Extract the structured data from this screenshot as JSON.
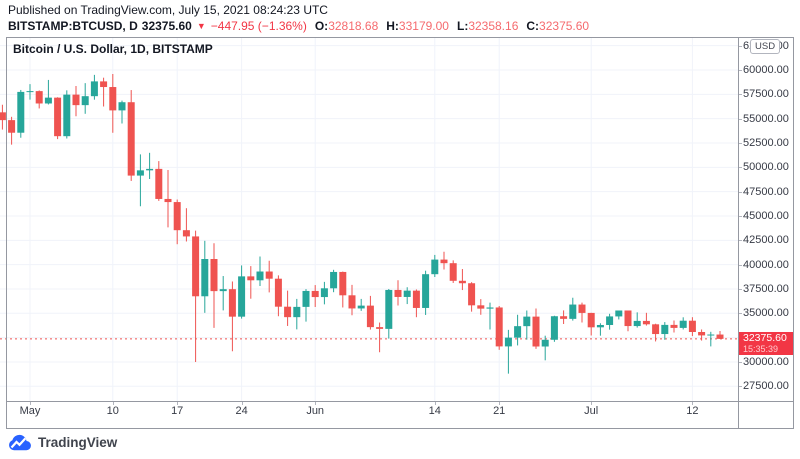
{
  "header": {
    "published_line": "Published on TradingView.com, July 15, 2021 08:24:23 UTC",
    "symbol": "BITSTAMP:BTCUSD, D",
    "price": "32375.60",
    "change_icon": "▼",
    "change": "−447.95 (−1.36%)",
    "ohlc": [
      {
        "label": "O:",
        "value": "32818.68"
      },
      {
        "label": "H:",
        "value": "33179.00"
      },
      {
        "label": "L:",
        "value": "32358.16"
      },
      {
        "label": "C:",
        "value": "32375.60"
      }
    ]
  },
  "chart": {
    "watermark_title": "Bitcoin / U.S. Dollar, 1D, BITSTAMP",
    "currency_badge": "USD",
    "price_label": {
      "price": "32375.60",
      "countdown": "15:35:39"
    }
  },
  "footer": {
    "logo_text": "TradingView"
  },
  "colors": {
    "up": "#26a69a",
    "down": "#ef5350",
    "accent_red": "#f23645",
    "grid": "#f0f3fa",
    "frame": "#9598a1",
    "axis_text": "#363a45"
  },
  "chart_data": {
    "type": "candlestick",
    "title": "Bitcoin / U.S. Dollar, 1D, BITSTAMP",
    "symbol": "BITSTAMP:BTCUSD",
    "interval": "1D",
    "current_price": 32375.6,
    "countdown": "15:35:39",
    "ylim": [
      26000,
      63400
    ],
    "grid": true,
    "y_ticks": [
      {
        "v": 62500,
        "label": "62500.00"
      },
      {
        "v": 60000,
        "label": "60000.00"
      },
      {
        "v": 57500,
        "label": "57500.00"
      },
      {
        "v": 55000,
        "label": "55000.00"
      },
      {
        "v": 52500,
        "label": "52500.00"
      },
      {
        "v": 50000,
        "label": "50000.00"
      },
      {
        "v": 47500,
        "label": "47500.00"
      },
      {
        "v": 45000,
        "label": "45000.00"
      },
      {
        "v": 42500,
        "label": "42500.00"
      },
      {
        "v": 40000,
        "label": "40000.00"
      },
      {
        "v": 37500,
        "label": "37500.00"
      },
      {
        "v": 35000,
        "label": "35000.00"
      },
      {
        "v": 32500,
        "label": ""
      },
      {
        "v": 30000,
        "label": "30000.00"
      },
      {
        "v": 27500,
        "label": "27500.00"
      }
    ],
    "x_ticks": [
      {
        "label": "May",
        "day": 0
      },
      {
        "label": "10",
        "day": 9
      },
      {
        "label": "17",
        "day": 16
      },
      {
        "label": "24",
        "day": 23
      },
      {
        "label": "Jun",
        "day": 31
      },
      {
        "label": "14",
        "day": 44
      },
      {
        "label": "21",
        "day": 51
      },
      {
        "label": "Jul",
        "day": 61
      },
      {
        "label": "12",
        "day": 72
      }
    ],
    "candle_fields": [
      "date",
      "open",
      "high",
      "low",
      "close"
    ],
    "candles": [
      [
        "Apr 28",
        55650,
        56430,
        53880,
        54850
      ],
      [
        "Apr 29",
        54850,
        55190,
        52330,
        53555
      ],
      [
        "Apr 30",
        53555,
        57950,
        53040,
        57750
      ],
      [
        "May 1",
        57750,
        58550,
        56950,
        57830
      ],
      [
        "May 2",
        57830,
        57900,
        56050,
        56560
      ],
      [
        "May 3",
        56560,
        58980,
        56460,
        57160
      ],
      [
        "May 4",
        57160,
        57200,
        52900,
        53200
      ],
      [
        "May 5",
        53200,
        57910,
        52960,
        57470
      ],
      [
        "May 6",
        57470,
        58350,
        55250,
        56390
      ],
      [
        "May 7",
        56390,
        58650,
        55500,
        57310
      ],
      [
        "May 8",
        57310,
        59500,
        56950,
        58830
      ],
      [
        "May 9",
        58830,
        59210,
        56250,
        58250
      ],
      [
        "May 10",
        58250,
        59590,
        53550,
        55850
      ],
      [
        "May 11",
        55850,
        56850,
        54500,
        56690
      ],
      [
        "May 12",
        56690,
        57940,
        48600,
        49150
      ],
      [
        "May 13",
        49150,
        51330,
        46000,
        49690
      ],
      [
        "May 14",
        49690,
        51490,
        48800,
        49840
      ],
      [
        "May 15",
        49840,
        50640,
        46550,
        46750
      ],
      [
        "May 16",
        46750,
        49720,
        43825,
        46430
      ],
      [
        "May 17",
        46430,
        46690,
        42100,
        43540
      ],
      [
        "May 18",
        43540,
        45800,
        42380,
        42900
      ],
      [
        "May 19",
        42900,
        43500,
        30000,
        36750
      ],
      [
        "May 20",
        36750,
        42450,
        35050,
        40580
      ],
      [
        "May 21",
        40580,
        42200,
        33500,
        37280
      ],
      [
        "May 22",
        37280,
        38830,
        35300,
        37480
      ],
      [
        "May 23",
        37480,
        38270,
        31100,
        34655
      ],
      [
        "May 24",
        34655,
        39920,
        34455,
        38796
      ],
      [
        "May 25",
        38796,
        39850,
        36500,
        38392
      ],
      [
        "May 26",
        38392,
        40840,
        37810,
        39294
      ],
      [
        "May 27",
        39294,
        40400,
        37150,
        38556
      ],
      [
        "May 28",
        38556,
        38900,
        34700,
        35680
      ],
      [
        "May 29",
        35680,
        37330,
        33700,
        34605
      ],
      [
        "May 30",
        34605,
        36480,
        33350,
        35660
      ],
      [
        "May 31",
        35660,
        37490,
        34150,
        37298
      ],
      [
        "Jun 1",
        37298,
        37900,
        35650,
        36670
      ],
      [
        "Jun 2",
        36670,
        38230,
        35920,
        37570
      ],
      [
        "Jun 3",
        37570,
        39470,
        37170,
        39250
      ],
      [
        "Jun 4",
        39250,
        39290,
        35600,
        36850
      ],
      [
        "Jun 5",
        36850,
        37920,
        34800,
        35500
      ],
      [
        "Jun 6",
        35500,
        36480,
        35250,
        35790
      ],
      [
        "Jun 7",
        35790,
        36790,
        33330,
        33580
      ],
      [
        "Jun 8",
        33580,
        34050,
        31000,
        33400
      ],
      [
        "Jun 9",
        33400,
        37500,
        32400,
        37400
      ],
      [
        "Jun 10",
        37400,
        38400,
        35800,
        36680
      ],
      [
        "Jun 11",
        36680,
        37680,
        35950,
        37330
      ],
      [
        "Jun 12",
        37330,
        37450,
        34600,
        35550
      ],
      [
        "Jun 13",
        35550,
        39380,
        34830,
        39020
      ],
      [
        "Jun 14",
        39020,
        41000,
        38730,
        40520
      ],
      [
        "Jun 15",
        40520,
        41320,
        39500,
        40150
      ],
      [
        "Jun 16",
        40150,
        40440,
        38120,
        38340
      ],
      [
        "Jun 17",
        38340,
        39550,
        37390,
        38090
      ],
      [
        "Jun 18",
        38090,
        38200,
        35170,
        35820
      ],
      [
        "Jun 19",
        35820,
        36460,
        34850,
        35480
      ],
      [
        "Jun 20",
        35480,
        36100,
        33330,
        35600
      ],
      [
        "Jun 21",
        35600,
        35750,
        31250,
        31600
      ],
      [
        "Jun 22",
        31600,
        33300,
        28800,
        32500
      ],
      [
        "Jun 23",
        32500,
        34850,
        31700,
        33680
      ],
      [
        "Jun 24",
        33680,
        35290,
        32290,
        34660
      ],
      [
        "Jun 25",
        34660,
        35500,
        31350,
        31590
      ],
      [
        "Jun 26",
        31590,
        32700,
        30170,
        32280
      ],
      [
        "Jun 27",
        32280,
        34750,
        32070,
        34700
      ],
      [
        "Jun 28",
        34700,
        35300,
        33900,
        34430
      ],
      [
        "Jun 29",
        34430,
        36600,
        34250,
        35900
      ],
      [
        "Jun 30",
        35900,
        36100,
        34050,
        35040
      ],
      [
        "Jul 1",
        35040,
        35050,
        32720,
        33560
      ],
      [
        "Jul 2",
        33560,
        33980,
        32700,
        33800
      ],
      [
        "Jul 3",
        33800,
        34950,
        33320,
        34680
      ],
      [
        "Jul 4",
        34680,
        35290,
        34370,
        35290
      ],
      [
        "Jul 5",
        35290,
        35290,
        33160,
        33690
      ],
      [
        "Jul 6",
        33690,
        35100,
        33530,
        34220
      ],
      [
        "Jul 7",
        34220,
        35050,
        33740,
        33870
      ],
      [
        "Jul 8",
        33870,
        33930,
        32110,
        32870
      ],
      [
        "Jul 9",
        32870,
        34100,
        32280,
        33810
      ],
      [
        "Jul 10",
        33810,
        34260,
        33030,
        33500
      ],
      [
        "Jul 11",
        33500,
        34590,
        33340,
        34240
      ],
      [
        "Jul 12",
        34240,
        34600,
        32660,
        33080
      ],
      [
        "Jul 13",
        33080,
        33340,
        32200,
        32730
      ],
      [
        "Jul 14",
        32730,
        33100,
        31600,
        32820
      ],
      [
        "Jul 15",
        32818.68,
        33179.0,
        32358.16,
        32375.6
      ]
    ]
  }
}
